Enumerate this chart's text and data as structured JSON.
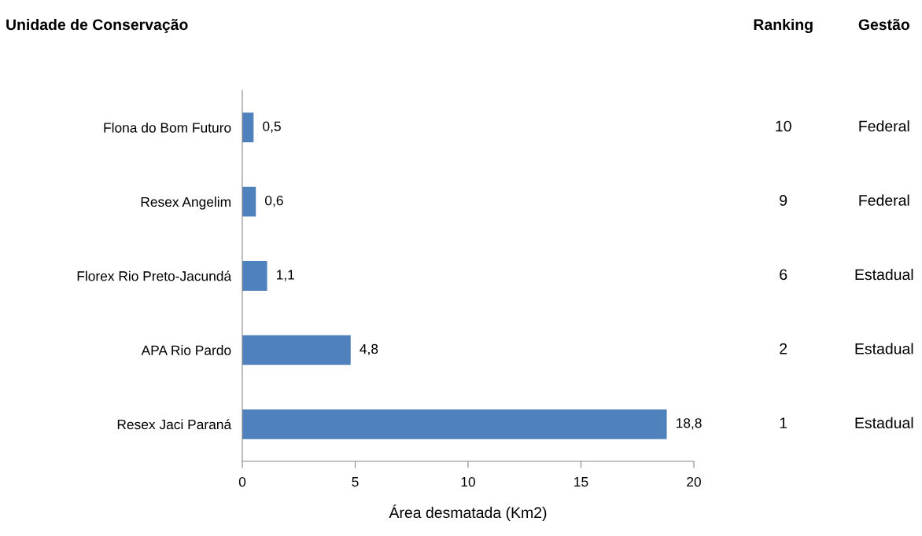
{
  "chart_data": [
    {
      "type": "bar",
      "orientation": "horizontal",
      "title": "Unidade de Conservação",
      "xlabel": "Área desmatada (Km2)",
      "categories": [
        "Flona do Bom Futuro",
        "Resex Angelim",
        "Florex Rio Preto-Jacundá",
        "APA Rio Pardo",
        "Resex Jaci Paraná"
      ],
      "values": [
        0.5,
        0.6,
        1.1,
        4.8,
        18.8
      ],
      "color": "#4f81bd",
      "value_labels": [
        "0,5",
        "0,6",
        "1,1",
        "4,8",
        "18,8"
      ],
      "xlim": [
        0,
        20
      ],
      "xticks": [
        0,
        5,
        10,
        15,
        20
      ],
      "grid": false,
      "legend": false
    },
    {
      "type": "other",
      "annotations": [
        "Ranking",
        "Gestão",
        "10",
        "Federal",
        "9",
        "Federal",
        "6",
        "Estadual",
        "2",
        "Estadual",
        "1",
        "Estadual"
      ]
    }
  ]
}
